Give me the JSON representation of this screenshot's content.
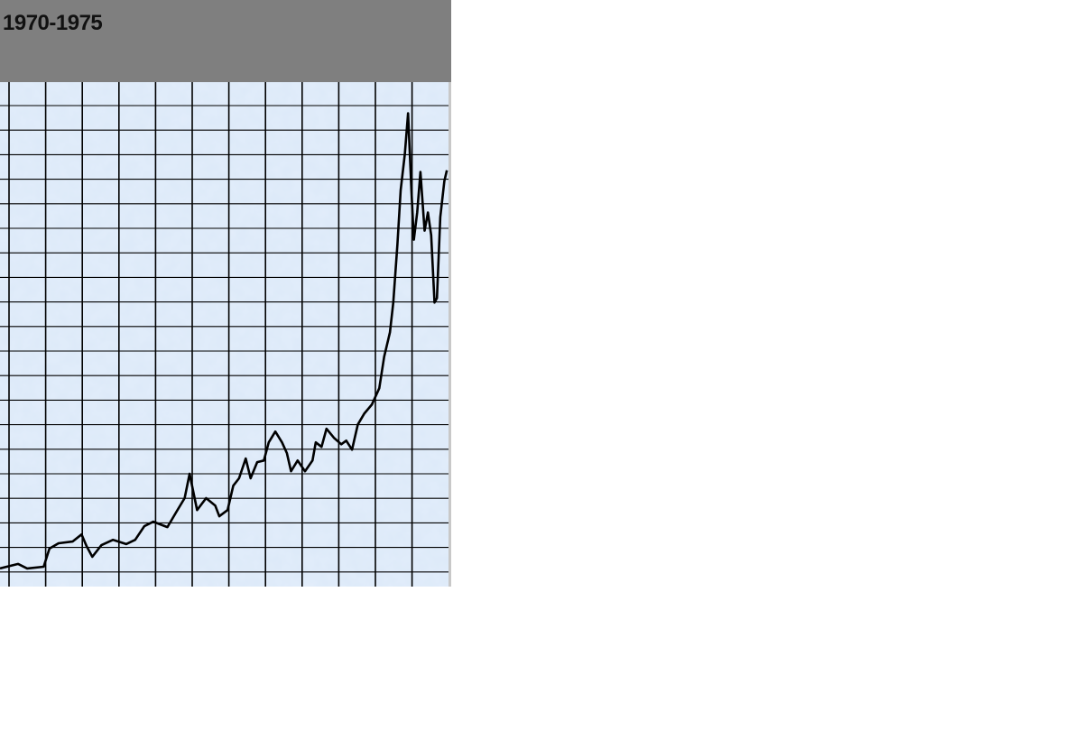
{
  "title": "1970-1975",
  "chart_data": {
    "type": "line",
    "title": "1970-1975",
    "xlabel": "",
    "ylabel": "",
    "xlim": [
      1970,
      1975.44
    ],
    "ylim": [
      28,
      206
    ],
    "grid": true,
    "legend": "none",
    "colors": {
      "line": "#000000",
      "background": "#dce9f9",
      "grid": "#000000",
      "header": "#7f7f7f"
    },
    "series": [
      {
        "x": [
          1970.0,
          1970.22,
          1970.33,
          1970.53,
          1970.6,
          1970.71,
          1970.88,
          1970.99,
          1971.05,
          1971.12,
          1971.23,
          1971.37,
          1971.53,
          1971.64,
          1971.75,
          1971.86,
          1972.03,
          1972.14,
          1972.24,
          1972.3,
          1972.39,
          1972.5,
          1972.61,
          1972.66,
          1972.76,
          1972.83,
          1972.9,
          1972.98,
          1973.04,
          1973.12,
          1973.2,
          1973.26,
          1973.34,
          1973.42,
          1973.48,
          1973.53,
          1973.61,
          1973.7,
          1973.79,
          1973.83,
          1973.9,
          1973.96,
          1974.05,
          1974.14,
          1974.2,
          1974.27,
          1974.34,
          1974.42,
          1974.51,
          1974.6,
          1974.66,
          1974.73,
          1974.77,
          1974.82,
          1974.86,
          1974.91,
          1974.95,
          1974.99,
          1975.02,
          1975.06,
          1975.1,
          1975.15,
          1975.19,
          1975.23,
          1975.27,
          1975.3,
          1975.34,
          1975.39,
          1975.42
        ],
        "y": [
          34.4,
          36.0,
          34.4,
          35.0,
          41.4,
          43.3,
          43.9,
          46.4,
          42.3,
          38.5,
          42.6,
          44.5,
          43.0,
          44.5,
          49.3,
          50.9,
          49.0,
          54.4,
          59.2,
          67.8,
          55.0,
          59.2,
          56.6,
          52.8,
          55.0,
          63.6,
          66.2,
          73.2,
          66.2,
          71.9,
          72.5,
          78.9,
          82.7,
          78.9,
          75.1,
          68.7,
          72.5,
          68.7,
          72.5,
          78.9,
          77.3,
          83.7,
          80.5,
          78.2,
          79.5,
          76.3,
          85.2,
          89.1,
          92.2,
          98.0,
          109.1,
          117.7,
          128.2,
          148.8,
          167.9,
          180.6,
          195.0,
          167.9,
          150.4,
          160.0,
          174.3,
          153.6,
          160.0,
          152.0,
          128.2,
          129.8,
          158.4,
          171.1,
          174.9
        ]
      }
    ]
  }
}
